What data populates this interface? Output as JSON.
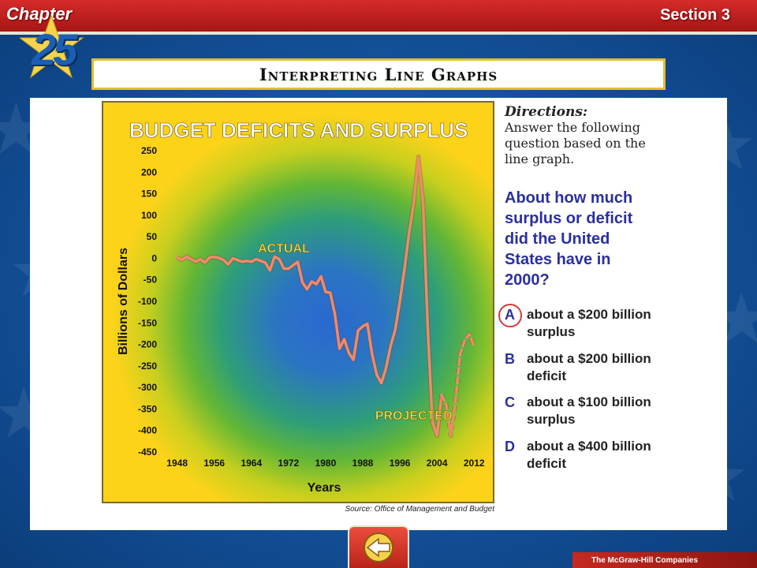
{
  "header": {
    "chapter_label": "Chapter",
    "chapter_number": "25",
    "section_label": "Section 3"
  },
  "slide_title": "Interpreting Line Graphs",
  "chart_data": {
    "type": "line",
    "title": "BUDGET DEFICITS AND SURPLUS",
    "xlabel": "Years",
    "ylabel": "Billions of Dollars",
    "xlim": [
      1945,
      2014
    ],
    "ylim": [
      -450,
      250
    ],
    "x_ticks": [
      1948,
      1956,
      1964,
      1972,
      1980,
      1988,
      1996,
      2004,
      2012
    ],
    "y_ticks": [
      250,
      200,
      150,
      100,
      50,
      0,
      -50,
      -100,
      -150,
      -200,
      -250,
      -300,
      -350,
      -400,
      -450
    ],
    "annotations": [
      {
        "text": "ACTUAL",
        "x": 1971,
        "y": 14
      },
      {
        "text": "PROJECTED",
        "x": 1999,
        "y": -375
      }
    ],
    "series": [
      {
        "name": "ACTUAL",
        "style": "solid",
        "color": "#f08a6a",
        "x": [
          1948,
          1949,
          1950,
          1951,
          1952,
          1953,
          1954,
          1955,
          1956,
          1957,
          1958,
          1959,
          1960,
          1961,
          1962,
          1963,
          1964,
          1965,
          1966,
          1967,
          1968,
          1969,
          1970,
          1971,
          1972,
          1973,
          1974,
          1975,
          1976,
          1977,
          1978,
          1979,
          1980,
          1981,
          1982,
          1983,
          1984,
          1985,
          1986,
          1987,
          1988,
          1989,
          1990,
          1991,
          1992,
          1993,
          1994,
          1995,
          1996,
          1997,
          1998,
          1999,
          2000,
          2001,
          2002,
          2003,
          2004,
          2005
        ],
        "y": [
          2,
          -4,
          4,
          -2,
          -8,
          -2,
          -10,
          2,
          3,
          1,
          -4,
          -14,
          0,
          -4,
          -8,
          -6,
          -8,
          -2,
          -6,
          -10,
          -28,
          4,
          -2,
          -24,
          -24,
          -16,
          -8,
          -56,
          -72,
          -54,
          -60,
          -42,
          -78,
          -80,
          -130,
          -210,
          -188,
          -220,
          -236,
          -168,
          -158,
          -152,
          -222,
          -270,
          -290,
          -256,
          -204,
          -166,
          -100,
          -24,
          60,
          128,
          236,
          130,
          -160,
          -380,
          -412,
          -318
        ]
      },
      {
        "name": "PROJECTED",
        "style": "dashed",
        "color": "#f08a6a",
        "x": [
          2005,
          2006,
          2007,
          2008,
          2009,
          2010,
          2011,
          2012
        ],
        "y": [
          -318,
          -340,
          -412,
          -330,
          -222,
          -190,
          -176,
          -206
        ]
      }
    ],
    "source": "Source: Office of Management and Budget"
  },
  "directions": {
    "heading": "Directions:",
    "text": "Answer the following question based on the line graph."
  },
  "question": "About how much surplus or deficit did the United States have in 2000?",
  "answers": [
    {
      "letter": "A",
      "text": "about a $200 billion surplus",
      "selected": true
    },
    {
      "letter": "B",
      "text": "about a $200 billion deficit",
      "selected": false
    },
    {
      "letter": "C",
      "text": "about a $100 billion surplus",
      "selected": false
    },
    {
      "letter": "D",
      "text": "about a $400 billion deficit",
      "selected": false
    }
  ],
  "footer": {
    "publisher": "The McGraw-Hill Companies"
  }
}
